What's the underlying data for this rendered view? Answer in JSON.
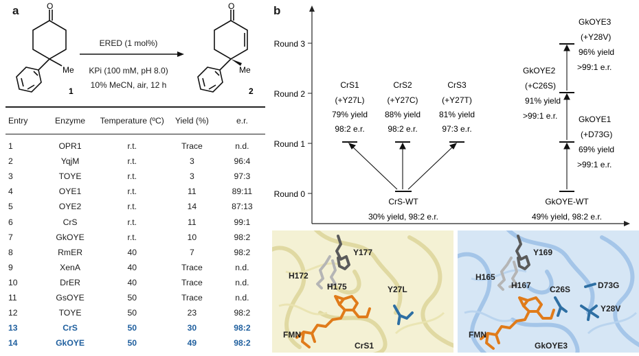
{
  "panel_a": {
    "label": "a",
    "compound1": {
      "number": "1",
      "ketone_o": "O",
      "methyl": "Me"
    },
    "compound2": {
      "number": "2",
      "ketone_o": "O",
      "methyl": "Me"
    },
    "conditions": {
      "above_arrow": "ERED (1 mol%)",
      "below_arrow_1": "KPi (100 mM, pH 8.0)",
      "below_arrow_2": "10% MeCN, air, 12 h"
    },
    "table": {
      "headers": [
        "Entry",
        "Enzyme",
        "Temperature (ºC)",
        "Yield (%)",
        "e.r."
      ],
      "rows": [
        {
          "entry": "1",
          "enzyme": "OPR1",
          "temp": "r.t.",
          "yield": "Trace",
          "er": "n.d."
        },
        {
          "entry": "2",
          "enzyme": "YqjM",
          "temp": "r.t.",
          "yield": "3",
          "er": "96:4"
        },
        {
          "entry": "3",
          "enzyme": "TOYE",
          "temp": "r.t.",
          "yield": "3",
          "er": "97:3"
        },
        {
          "entry": "4",
          "enzyme": "OYE1",
          "temp": "r.t.",
          "yield": "11",
          "er": "89:11"
        },
        {
          "entry": "5",
          "enzyme": "OYE2",
          "temp": "r.t.",
          "yield": "14",
          "er": "87:13"
        },
        {
          "entry": "6",
          "enzyme": "CrS",
          "temp": "r.t.",
          "yield": "11",
          "er": "99:1"
        },
        {
          "entry": "7",
          "enzyme": "GkOYE",
          "temp": "r.t.",
          "yield": "10",
          "er": "98:2"
        },
        {
          "entry": "8",
          "enzyme": "RmER",
          "temp": "40",
          "yield": "7",
          "er": "98:2"
        },
        {
          "entry": "9",
          "enzyme": "XenA",
          "temp": "40",
          "yield": "Trace",
          "er": "n.d."
        },
        {
          "entry": "10",
          "enzyme": "DrER",
          "temp": "40",
          "yield": "Trace",
          "er": "n.d."
        },
        {
          "entry": "11",
          "enzyme": "GsOYE",
          "temp": "50",
          "yield": "Trace",
          "er": "n.d."
        },
        {
          "entry": "12",
          "enzyme": "TOYE",
          "temp": "50",
          "yield": "23",
          "er": "98:2"
        },
        {
          "entry": "13",
          "enzyme": "CrS",
          "temp": "50",
          "yield": "30",
          "er": "98:2"
        },
        {
          "entry": "14",
          "enzyme": "GkOYE",
          "temp": "50",
          "yield": "49",
          "er": "98:2"
        }
      ],
      "highlight_color": "#1f5f9e"
    }
  },
  "panel_b": {
    "label": "b",
    "y_axis": [
      "Round 0",
      "Round 1",
      "Round 2",
      "Round 3"
    ],
    "crs_wt": {
      "name": "CrS-WT",
      "detail": "30% yield, 98:2 e.r."
    },
    "crs1": {
      "name": "CrS1",
      "mutation": "(+Y27L)",
      "yield": "79% yield",
      "er": "98:2 e.r."
    },
    "crs2": {
      "name": "CrS2",
      "mutation": "(+Y27C)",
      "yield": "88% yield",
      "er": "98:2 e.r."
    },
    "crs3": {
      "name": "CrS3",
      "mutation": "(+Y27T)",
      "yield": "81% yield",
      "er": "97:3 e.r."
    },
    "gk_wt": {
      "name": "GkOYE-WT",
      "detail": "49% yield, 98:2 e.r."
    },
    "gk1": {
      "name": "GkOYE1",
      "mutation": "(+D73G)",
      "yield": "69% yield",
      "er": ">99:1 e.r."
    },
    "gk2": {
      "name": "GkOYE2",
      "mutation": "(+C26S)",
      "yield": "91% yield",
      "er": ">99:1 e.r."
    },
    "gk3": {
      "name": "GkOYE3",
      "mutation": "(+Y28V)",
      "yield": "96% yield",
      "er": ">99:1 e.r."
    },
    "struct_left": {
      "name": "CrS1",
      "residues": [
        "Y177",
        "H172",
        "H175",
        "Y27L",
        "FMN"
      ]
    },
    "struct_right": {
      "name": "GkOYE3",
      "residues": [
        "Y169",
        "H165",
        "H167",
        "C26S",
        "D73G",
        "Y28V",
        "FMN"
      ]
    },
    "colors": {
      "fmn": "#e07b1a",
      "mutation_blue": "#2e6fa3",
      "crs_bg": "#f2eecd",
      "gk_bg": "#cfe0f2"
    }
  }
}
